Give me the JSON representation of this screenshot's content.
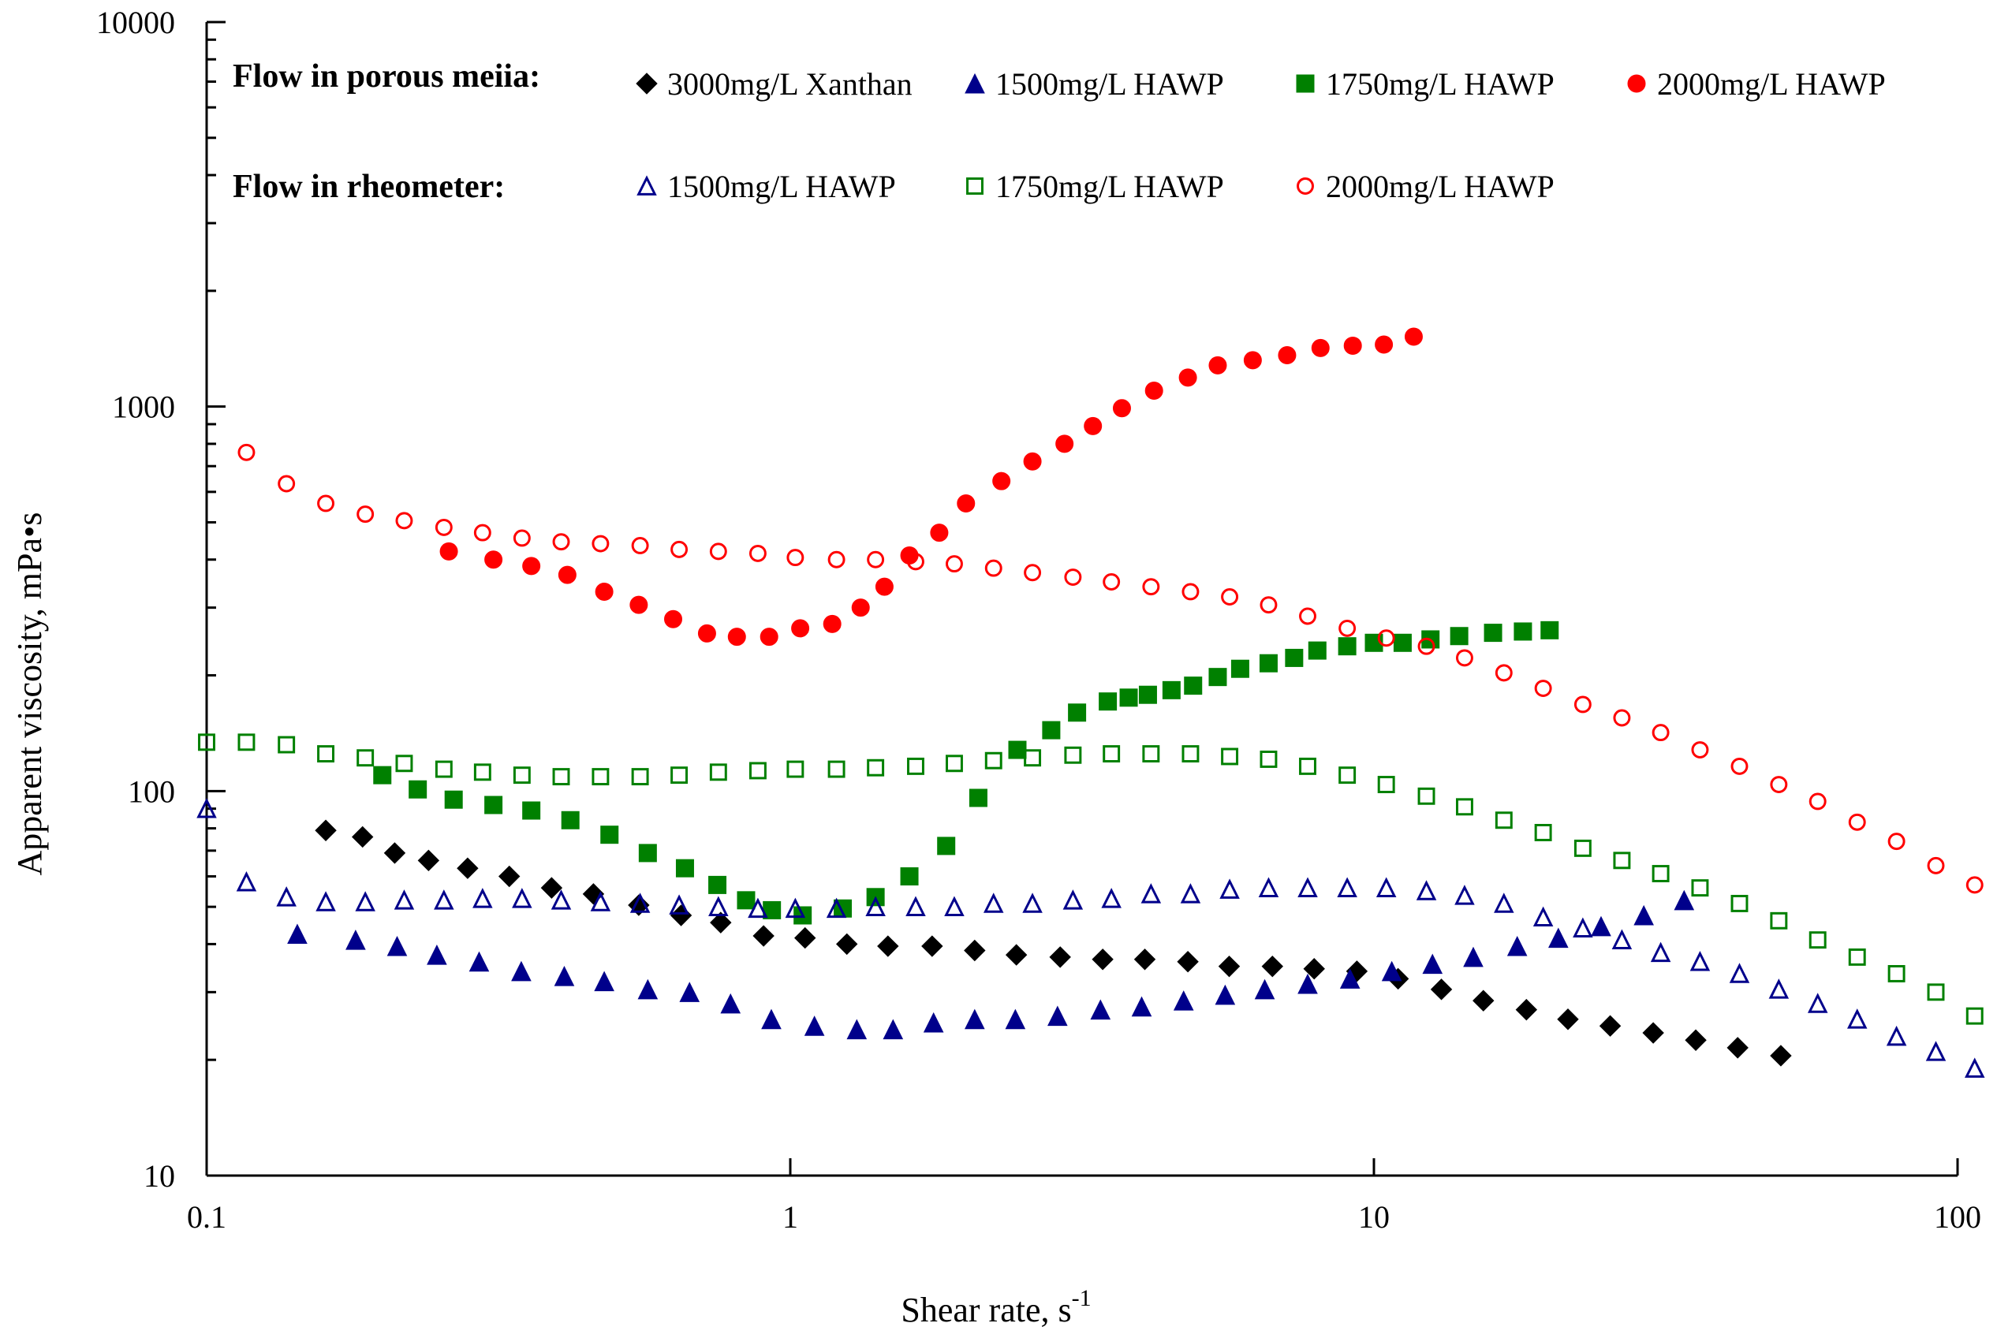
{
  "chart_data": {
    "type": "scatter",
    "xlabel": "Shear rate, s",
    "xlabel_sup": "-1",
    "ylabel": "Apparent viscosity, mPa•s",
    "xscale": "log",
    "yscale": "log",
    "xlim": [
      0.1,
      100
    ],
    "ylim": [
      10,
      10000
    ],
    "xticks": [
      0.1,
      1,
      10,
      100
    ],
    "xtick_labels": [
      "0.1",
      "1",
      "10",
      "100"
    ],
    "yticks": [
      10,
      100,
      1000,
      10000
    ],
    "ytick_labels": [
      "10",
      "100",
      "1000",
      "10000"
    ],
    "grid": false,
    "legend_position": "top-left",
    "legend": {
      "porous_heading": "Flow in porous meiia:",
      "rheometer_heading": "Flow in rheometer:"
    },
    "series": [
      {
        "name": "3000mg/L Xanthan",
        "group": "porous",
        "marker": "diamond",
        "filled": true,
        "color": "#000000",
        "x": [
          0.16,
          0.185,
          0.21,
          0.24,
          0.28,
          0.33,
          0.39,
          0.46,
          0.55,
          0.65,
          0.76,
          0.9,
          1.06,
          1.25,
          1.47,
          1.75,
          2.07,
          2.44,
          2.9,
          3.43,
          4.05,
          4.8,
          5.65,
          6.7,
          7.9,
          9.35,
          11.0,
          13.05,
          15.4,
          18.25,
          21.5,
          25.4,
          30.1,
          35.6,
          42.0,
          49.8
        ],
        "y": [
          79,
          76,
          69,
          66,
          63,
          60,
          56,
          54,
          50.5,
          47.5,
          45.5,
          42,
          41.5,
          40,
          39.5,
          39.5,
          38.5,
          37.5,
          37,
          36.5,
          36.5,
          36,
          35,
          35,
          34.5,
          34,
          32.5,
          30.5,
          28.5,
          27,
          25.5,
          24.5,
          23.5,
          22.5,
          21.5,
          20.5
        ]
      },
      {
        "name": "1500mg/L HAWP",
        "group": "porous",
        "marker": "triangle",
        "filled": true,
        "color": "#00008b",
        "x": [
          0.143,
          0.18,
          0.212,
          0.248,
          0.293,
          0.346,
          0.41,
          0.48,
          0.57,
          0.672,
          0.79,
          0.928,
          1.1,
          1.3,
          1.5,
          1.76,
          2.07,
          2.43,
          2.87,
          3.4,
          4.0,
          4.72,
          5.56,
          6.5,
          7.7,
          9.1,
          10.73,
          12.6,
          14.8,
          17.6,
          20.7,
          24.5,
          29.0,
          34.0
        ],
        "y": [
          42.5,
          41,
          39.5,
          37.5,
          36,
          34,
          33,
          32,
          30.5,
          30,
          28,
          25.5,
          24.5,
          24,
          24,
          25,
          25.5,
          25.5,
          26,
          27,
          27.5,
          28.5,
          29.5,
          30.5,
          31.5,
          32.5,
          34,
          35.5,
          37,
          39.5,
          41.5,
          44.5,
          47.5,
          52
        ]
      },
      {
        "name": "1750mg/L HAWP",
        "group": "porous",
        "marker": "square",
        "filled": true,
        "color": "#008000",
        "x": [
          0.2,
          0.23,
          0.265,
          0.31,
          0.36,
          0.42,
          0.49,
          0.57,
          0.66,
          0.75,
          0.84,
          0.93,
          1.05,
          1.23,
          1.4,
          1.6,
          1.85,
          2.1,
          2.45,
          2.8,
          3.1,
          3.5,
          3.8,
          4.1,
          4.5,
          4.9,
          5.4,
          5.9,
          6.6,
          7.3,
          8.0,
          9.0,
          10.0,
          11.2,
          12.5,
          14.0,
          16.0,
          18.0,
          20.0
        ],
        "y": [
          110,
          101,
          95,
          92,
          89,
          84,
          77,
          69,
          63,
          57,
          52,
          49,
          47.5,
          49.5,
          53,
          60,
          72,
          96,
          128,
          144,
          160,
          171,
          175,
          178,
          183,
          188,
          198,
          208,
          215,
          222,
          232,
          238,
          243,
          243,
          248,
          253,
          258,
          260,
          262
        ]
      },
      {
        "name": "2000mg/L HAWP",
        "group": "porous",
        "marker": "circle",
        "filled": true,
        "color": "#ff0000",
        "x": [
          0.26,
          0.31,
          0.36,
          0.415,
          0.48,
          0.55,
          0.63,
          0.72,
          0.81,
          0.92,
          1.04,
          1.18,
          1.32,
          1.45,
          1.6,
          1.8,
          2.0,
          2.3,
          2.6,
          2.95,
          3.3,
          3.7,
          4.2,
          4.8,
          5.4,
          6.2,
          7.1,
          8.1,
          9.2,
          10.4,
          11.7
        ],
        "y": [
          420,
          400,
          385,
          365,
          330,
          305,
          280,
          257,
          252,
          252,
          265,
          272,
          300,
          340,
          410,
          470,
          560,
          640,
          720,
          800,
          890,
          990,
          1100,
          1190,
          1280,
          1320,
          1360,
          1420,
          1440,
          1450,
          1520
        ]
      },
      {
        "name": "1500mg/L HAWP",
        "group": "rheometer",
        "marker": "triangle",
        "filled": false,
        "color": "#00008b",
        "x": [
          0.1,
          0.117,
          0.137,
          0.16,
          0.187,
          0.218,
          0.255,
          0.297,
          0.347,
          0.405,
          0.473,
          0.553,
          0.645,
          0.753,
          0.88,
          1.02,
          1.2,
          1.4,
          1.64,
          1.91,
          2.23,
          2.6,
          3.05,
          3.55,
          4.15,
          4.85,
          5.66,
          6.6,
          7.7,
          9.0,
          10.5,
          12.3,
          14.3,
          16.7,
          19.5,
          22.8,
          26.6,
          31.0,
          36.2,
          42.3,
          49.4,
          57.6,
          67.3,
          78.6,
          91.8,
          107
        ],
        "y": [
          90,
          58,
          53,
          51.5,
          51.5,
          52,
          52,
          52.5,
          52.5,
          52,
          51.5,
          51,
          50.5,
          50,
          49.5,
          49.5,
          49.5,
          50,
          50,
          50,
          51,
          51,
          52,
          52.5,
          54,
          54,
          55.5,
          56,
          56,
          56,
          56,
          55,
          53.5,
          51,
          47,
          44,
          41,
          38,
          36,
          33.5,
          30.5,
          28,
          25.5,
          23,
          21,
          19
        ]
      },
      {
        "name": "1750mg/L HAWP",
        "group": "rheometer",
        "marker": "square",
        "filled": false,
        "color": "#008000",
        "x": [
          0.1,
          0.117,
          0.137,
          0.16,
          0.187,
          0.218,
          0.255,
          0.297,
          0.347,
          0.405,
          0.473,
          0.553,
          0.645,
          0.753,
          0.88,
          1.02,
          1.2,
          1.4,
          1.64,
          1.91,
          2.23,
          2.6,
          3.05,
          3.55,
          4.15,
          4.85,
          5.66,
          6.6,
          7.7,
          9.0,
          10.5,
          12.3,
          14.3,
          16.7,
          19.5,
          22.8,
          26.6,
          31.0,
          36.2,
          42.3,
          49.4,
          57.6,
          67.3,
          78.6,
          91.8,
          107
        ],
        "y": [
          134,
          134,
          132,
          125,
          122,
          118,
          114,
          112,
          110,
          109,
          109,
          109,
          110,
          112,
          113,
          114,
          114,
          115,
          116,
          118,
          120,
          122,
          124,
          125,
          125,
          125,
          123,
          121,
          116,
          110,
          104,
          97,
          91,
          84,
          78,
          71,
          66,
          61,
          56,
          51,
          46,
          41,
          37,
          33.5,
          30,
          26
        ]
      },
      {
        "name": "2000mg/L HAWP",
        "group": "rheometer",
        "marker": "circle",
        "filled": false,
        "color": "#ff0000",
        "x": [
          0.117,
          0.137,
          0.16,
          0.187,
          0.218,
          0.255,
          0.297,
          0.347,
          0.405,
          0.473,
          0.553,
          0.645,
          0.753,
          0.88,
          1.02,
          1.2,
          1.4,
          1.64,
          1.91,
          2.23,
          2.6,
          3.05,
          3.55,
          4.15,
          4.85,
          5.66,
          6.6,
          7.7,
          9.0,
          10.5,
          12.3,
          14.3,
          16.7,
          19.5,
          22.8,
          26.6,
          31.0,
          36.2,
          42.3,
          49.4,
          57.6,
          67.3,
          78.6,
          91.8,
          107
        ],
        "y": [
          760,
          630,
          560,
          525,
          505,
          485,
          470,
          455,
          445,
          440,
          435,
          425,
          420,
          415,
          405,
          400,
          400,
          395,
          390,
          380,
          370,
          360,
          350,
          340,
          330,
          320,
          305,
          285,
          265,
          250,
          238,
          222,
          203,
          185,
          168,
          155,
          142,
          128,
          116,
          104,
          94,
          83,
          74,
          64,
          57
        ]
      }
    ]
  }
}
